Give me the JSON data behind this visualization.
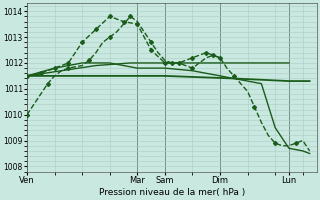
{
  "title": "Pression niveau de la mer( hPa )",
  "bg_color": "#c8e8e0",
  "grid_color": "#b0ccc8",
  "line_color": "#1a5c1a",
  "ylim": [
    1007.8,
    1014.3
  ],
  "yticks": [
    1008,
    1009,
    1010,
    1011,
    1012,
    1013,
    1014
  ],
  "day_labels": [
    "Ven",
    "Mar",
    "Sam",
    "Dim",
    "Lun"
  ],
  "day_x": [
    0,
    16,
    20,
    28,
    38
  ],
  "x_max": 42,
  "series": [
    {
      "x": [
        0,
        1,
        2,
        3,
        4,
        5,
        6,
        7,
        8,
        9,
        10,
        11,
        12,
        13,
        14,
        15,
        16,
        17,
        18,
        19,
        20,
        21,
        22,
        23,
        24,
        25,
        26,
        27,
        28,
        29,
        30,
        31,
        32,
        33,
        34,
        35,
        36,
        37,
        38,
        39,
        40,
        41
      ],
      "y": [
        1010.0,
        1010.4,
        1010.8,
        1011.2,
        1011.5,
        1011.7,
        1011.8,
        1011.85,
        1011.9,
        1012.1,
        1012.4,
        1012.8,
        1013.0,
        1013.2,
        1013.5,
        1013.8,
        1013.6,
        1013.2,
        1012.8,
        1012.4,
        1012.1,
        1012.0,
        1012.0,
        1011.9,
        1011.8,
        1012.0,
        1012.2,
        1012.3,
        1012.2,
        1011.8,
        1011.5,
        1011.2,
        1010.9,
        1010.3,
        1009.7,
        1009.2,
        1008.9,
        1008.8,
        1008.8,
        1008.9,
        1009.0,
        1008.6
      ],
      "marker": "D",
      "markersize": 2,
      "markevery": 3,
      "linewidth": 1.0,
      "linestyle": "--"
    },
    {
      "x": [
        0,
        10,
        20,
        30,
        38,
        41
      ],
      "y": [
        1011.5,
        1011.5,
        1011.5,
        1011.4,
        1011.3,
        1011.3
      ],
      "marker": null,
      "markersize": 0,
      "markevery": 1,
      "linewidth": 1.3,
      "linestyle": "-"
    },
    {
      "x": [
        0,
        5,
        10,
        15,
        20,
        25,
        30,
        35,
        38
      ],
      "y": [
        1011.5,
        1011.7,
        1011.9,
        1012.0,
        1012.0,
        1012.0,
        1012.0,
        1012.0,
        1012.0
      ],
      "marker": null,
      "markersize": 0,
      "markevery": 1,
      "linewidth": 1.0,
      "linestyle": "-"
    },
    {
      "x": [
        0,
        2,
        4,
        6,
        8,
        10,
        12,
        14,
        16,
        18,
        20,
        22,
        24,
        26,
        28
      ],
      "y": [
        1011.5,
        1011.6,
        1011.8,
        1012.0,
        1012.8,
        1013.3,
        1013.8,
        1013.6,
        1013.5,
        1012.5,
        1012.0,
        1012.0,
        1012.2,
        1012.4,
        1012.2
      ],
      "marker": "D",
      "markersize": 2,
      "markevery": 1,
      "linewidth": 1.0,
      "linestyle": "--"
    },
    {
      "x": [
        0,
        4,
        8,
        12,
        16,
        20,
        24,
        28,
        30,
        32,
        34,
        36,
        38,
        40,
        41
      ],
      "y": [
        1011.5,
        1011.8,
        1012.0,
        1012.0,
        1011.8,
        1011.8,
        1011.7,
        1011.5,
        1011.4,
        1011.3,
        1011.2,
        1009.5,
        1008.7,
        1008.6,
        1008.5
      ],
      "marker": null,
      "markersize": 0,
      "markevery": 1,
      "linewidth": 1.0,
      "linestyle": "-"
    }
  ]
}
